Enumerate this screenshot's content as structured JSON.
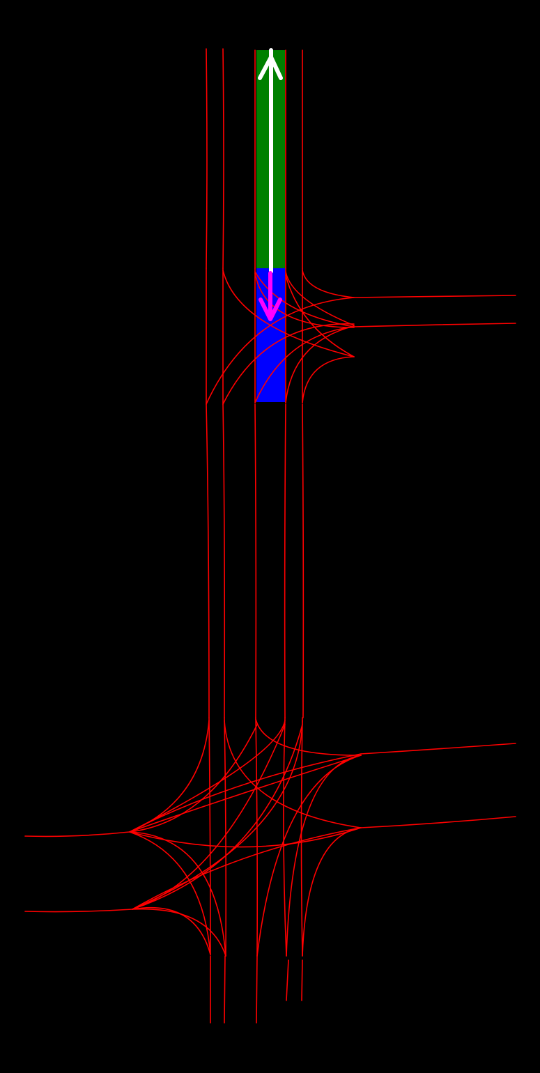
{
  "map": {
    "background": "#000000",
    "lane_color": "#ff0000",
    "route_segment_color": "#008000",
    "target_segment_color": "#0000ff",
    "ego_arrow_color": "#ffffff",
    "target_arrow_color": "#ff00ff",
    "ego_arrow_icon": "up-arrow-icon",
    "target_arrow_icon": "down-arrow-icon"
  }
}
